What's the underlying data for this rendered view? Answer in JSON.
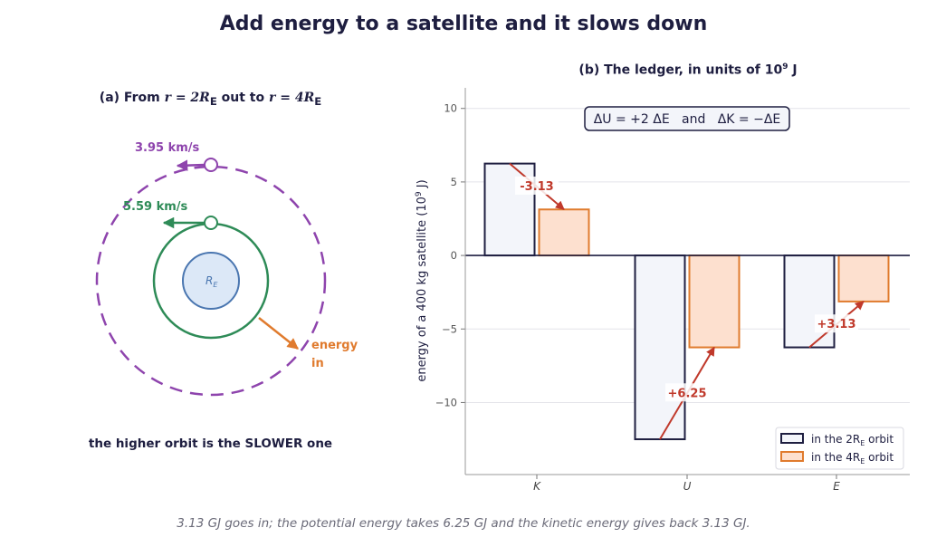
{
  "figure": {
    "title": "Add energy to a satellite and it slows down",
    "footer": "3.13 GJ goes in; the potential energy takes 6.25 GJ and the kinetic energy gives back 3.13 GJ."
  },
  "left_panel": {
    "title_prefix": "(a) From ",
    "title_r1": "r = 2R",
    "title_mid": " out to ",
    "title_r2": "r = 4R",
    "subscript": "E",
    "earth_label": "R",
    "outer_speed": "3.95 km/s",
    "inner_speed": "5.59 km/s",
    "energy_line1": "energy",
    "energy_line2": "in",
    "caption": "the higher orbit is the SLOWER one",
    "colors": {
      "outer": "#8e44ad",
      "inner": "#2e8b57",
      "earth_fill": "#dce8f7",
      "earth_stroke": "#4a76b0",
      "energy": "#e07b2e"
    }
  },
  "chart_data": {
    "type": "bar",
    "title": "(b) The ledger, in units of 10^9 J",
    "title_text": "(b) The ledger, in units of 10",
    "title_exp": "9",
    "title_unit": " J",
    "ylabel_text": "energy of a 400 kg satellite   (10",
    "ylabel_exp": "9",
    "ylabel_unit": " J)",
    "categories": [
      "K",
      "U",
      "E"
    ],
    "series": [
      {
        "name": "in the 2R_E orbit",
        "legend_prefix": "in the 2R",
        "legend_sub": "E",
        "legend_suffix": " orbit",
        "values": [
          6.25,
          -12.5,
          -6.25
        ],
        "fill": "#f3f5fa",
        "stroke": "#1e1e40"
      },
      {
        "name": "in the 4R_E orbit",
        "legend_prefix": "in the 4R",
        "legend_sub": "E",
        "legend_suffix": " orbit",
        "values": [
          3.13,
          -6.25,
          -3.13
        ],
        "fill": "#fde0cf",
        "stroke": "#e07b2e"
      }
    ],
    "changes": [
      "-3.13",
      "+6.25",
      "+3.13"
    ],
    "annotation": "ΔU = +2 ΔE   and   ΔK = −ΔE",
    "yticks": [
      10,
      5,
      0,
      -5,
      -10
    ],
    "ytick_labels": [
      "10",
      "5",
      "0",
      "−5",
      "−10"
    ],
    "ylim": [
      -14.9,
      11.4
    ],
    "grid": true,
    "legend_position": "lower-right",
    "colors": {
      "change": "#c0392b"
    }
  }
}
